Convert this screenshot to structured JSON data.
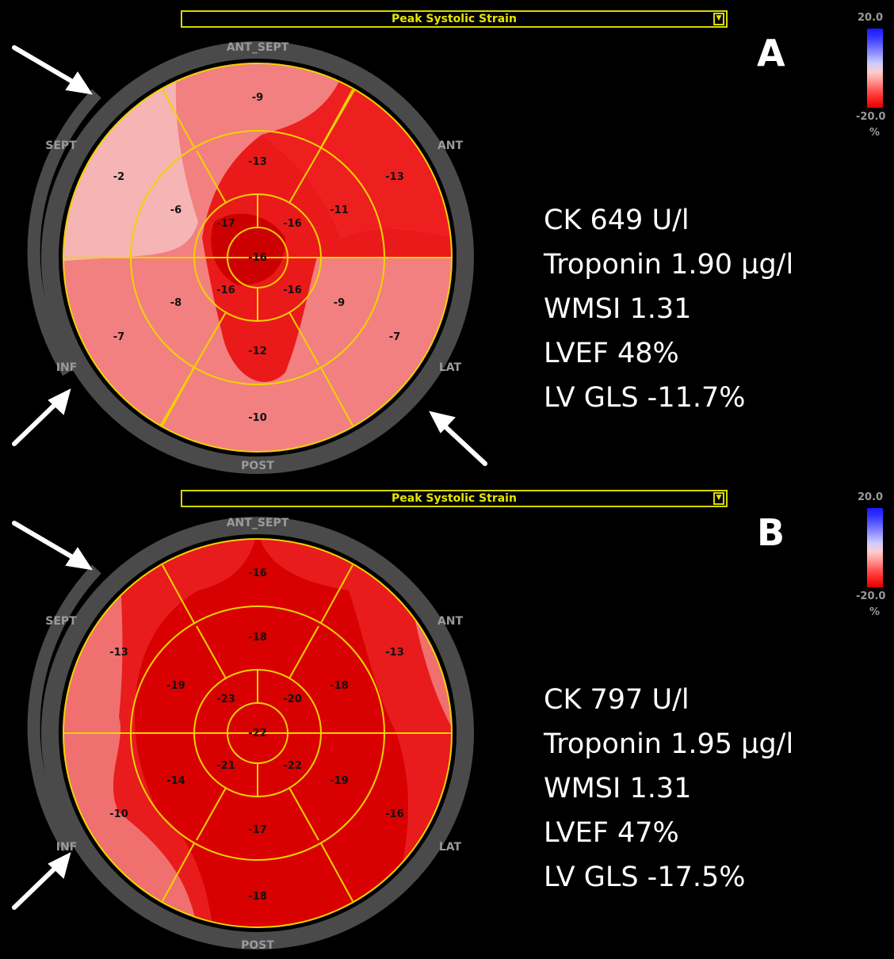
{
  "colors": {
    "background": "#000000",
    "title_bar": "#e6e600",
    "segment_grid": "#f2d200",
    "outer_ring": "#4a4a4a",
    "stats_text": "#ffffff"
  },
  "panels": [
    {
      "letter": "A",
      "title": "Peak Systolic Strain",
      "scale": {
        "max": "20.0",
        "min": "-20.0",
        "unit": "%"
      },
      "walls": {
        "ant_sept": "ANT_SEPT",
        "ant": "ANT",
        "lat": "LAT",
        "post": "POST",
        "inf": "INF",
        "sept": "SEPT"
      },
      "segments": {
        "basal": [
          "-9",
          "-13",
          "-7",
          "-10",
          "-7",
          "-2"
        ],
        "mid": [
          "-13",
          "-11",
          "-9",
          "-12",
          "-8",
          "-6"
        ],
        "apical": [
          "-16",
          "-16",
          "-16",
          "-17"
        ],
        "apex": "-16"
      },
      "stats": [
        "CK 649 U/l",
        "Troponin 1.90 µg/l",
        "WMSI 1.31",
        "LVEF 48%",
        "LV GLS -11.7%"
      ],
      "arrows": [
        "top-left",
        "bottom-left",
        "bottom-right"
      ]
    },
    {
      "letter": "B",
      "title": "Peak Systolic Strain",
      "scale": {
        "max": "20.0",
        "min": "-20.0",
        "unit": "%"
      },
      "walls": {
        "ant_sept": "ANT_SEPT",
        "ant": "ANT",
        "lat": "LAT",
        "post": "POST",
        "inf": "INF",
        "sept": "SEPT"
      },
      "segments": {
        "basal": [
          "-16",
          "-13",
          "-16",
          "-18",
          "-10",
          "-13"
        ],
        "mid": [
          "-18",
          "-18",
          "-19",
          "-17",
          "-14",
          "-19"
        ],
        "apical": [
          "-20",
          "-22",
          "-21",
          "-23"
        ],
        "apex": "-22"
      },
      "stats": [
        "CK 797 U/l",
        "Troponin 1.95 µg/l",
        "WMSI 1.31",
        "LVEF 47%",
        "LV GLS -17.5%"
      ],
      "arrows": [
        "top-left",
        "bottom-left"
      ]
    }
  ]
}
